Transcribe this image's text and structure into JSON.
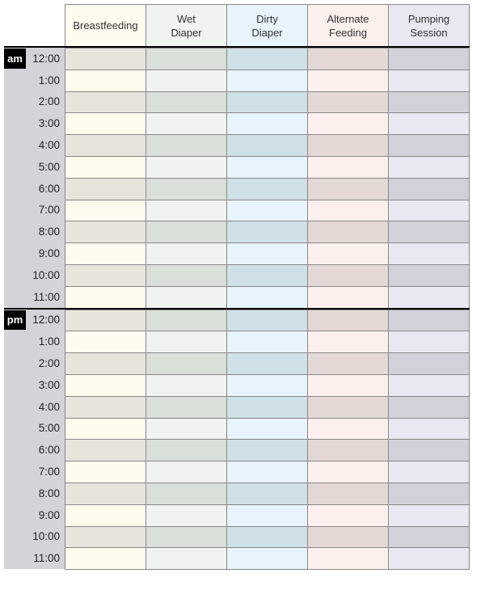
{
  "columns": [
    {
      "label": "Breastfeeding",
      "light": "#fdfdef",
      "dark": "#e5e5dc"
    },
    {
      "label": "Wet\nDiaper",
      "light": "#eff4ee",
      "dark": "#d8e0d8"
    },
    {
      "label": "Dirty\nDiaper",
      "light": "#e7f4fb",
      "dark": "#d0e0e7"
    },
    {
      "label": "Alternate\nFeeding",
      "light": "#fcf0ec",
      "dark": "#e4d9d4"
    },
    {
      "label": "Pumping\nSession",
      "light": "#e9e7f2",
      "dark": "#d1d1da"
    }
  ],
  "periods": [
    {
      "label": "am",
      "times": [
        "12:00",
        "1:00",
        "2:00",
        "3:00",
        "4:00",
        "5:00",
        "6:00",
        "7:00",
        "8:00",
        "9:00",
        "10:00",
        "11:00"
      ]
    },
    {
      "label": "pm",
      "times": [
        "12:00",
        "1:00",
        "2:00",
        "3:00",
        "4:00",
        "5:00",
        "6:00",
        "7:00",
        "8:00",
        "9:00",
        "10:00",
        "11:00"
      ]
    }
  ]
}
